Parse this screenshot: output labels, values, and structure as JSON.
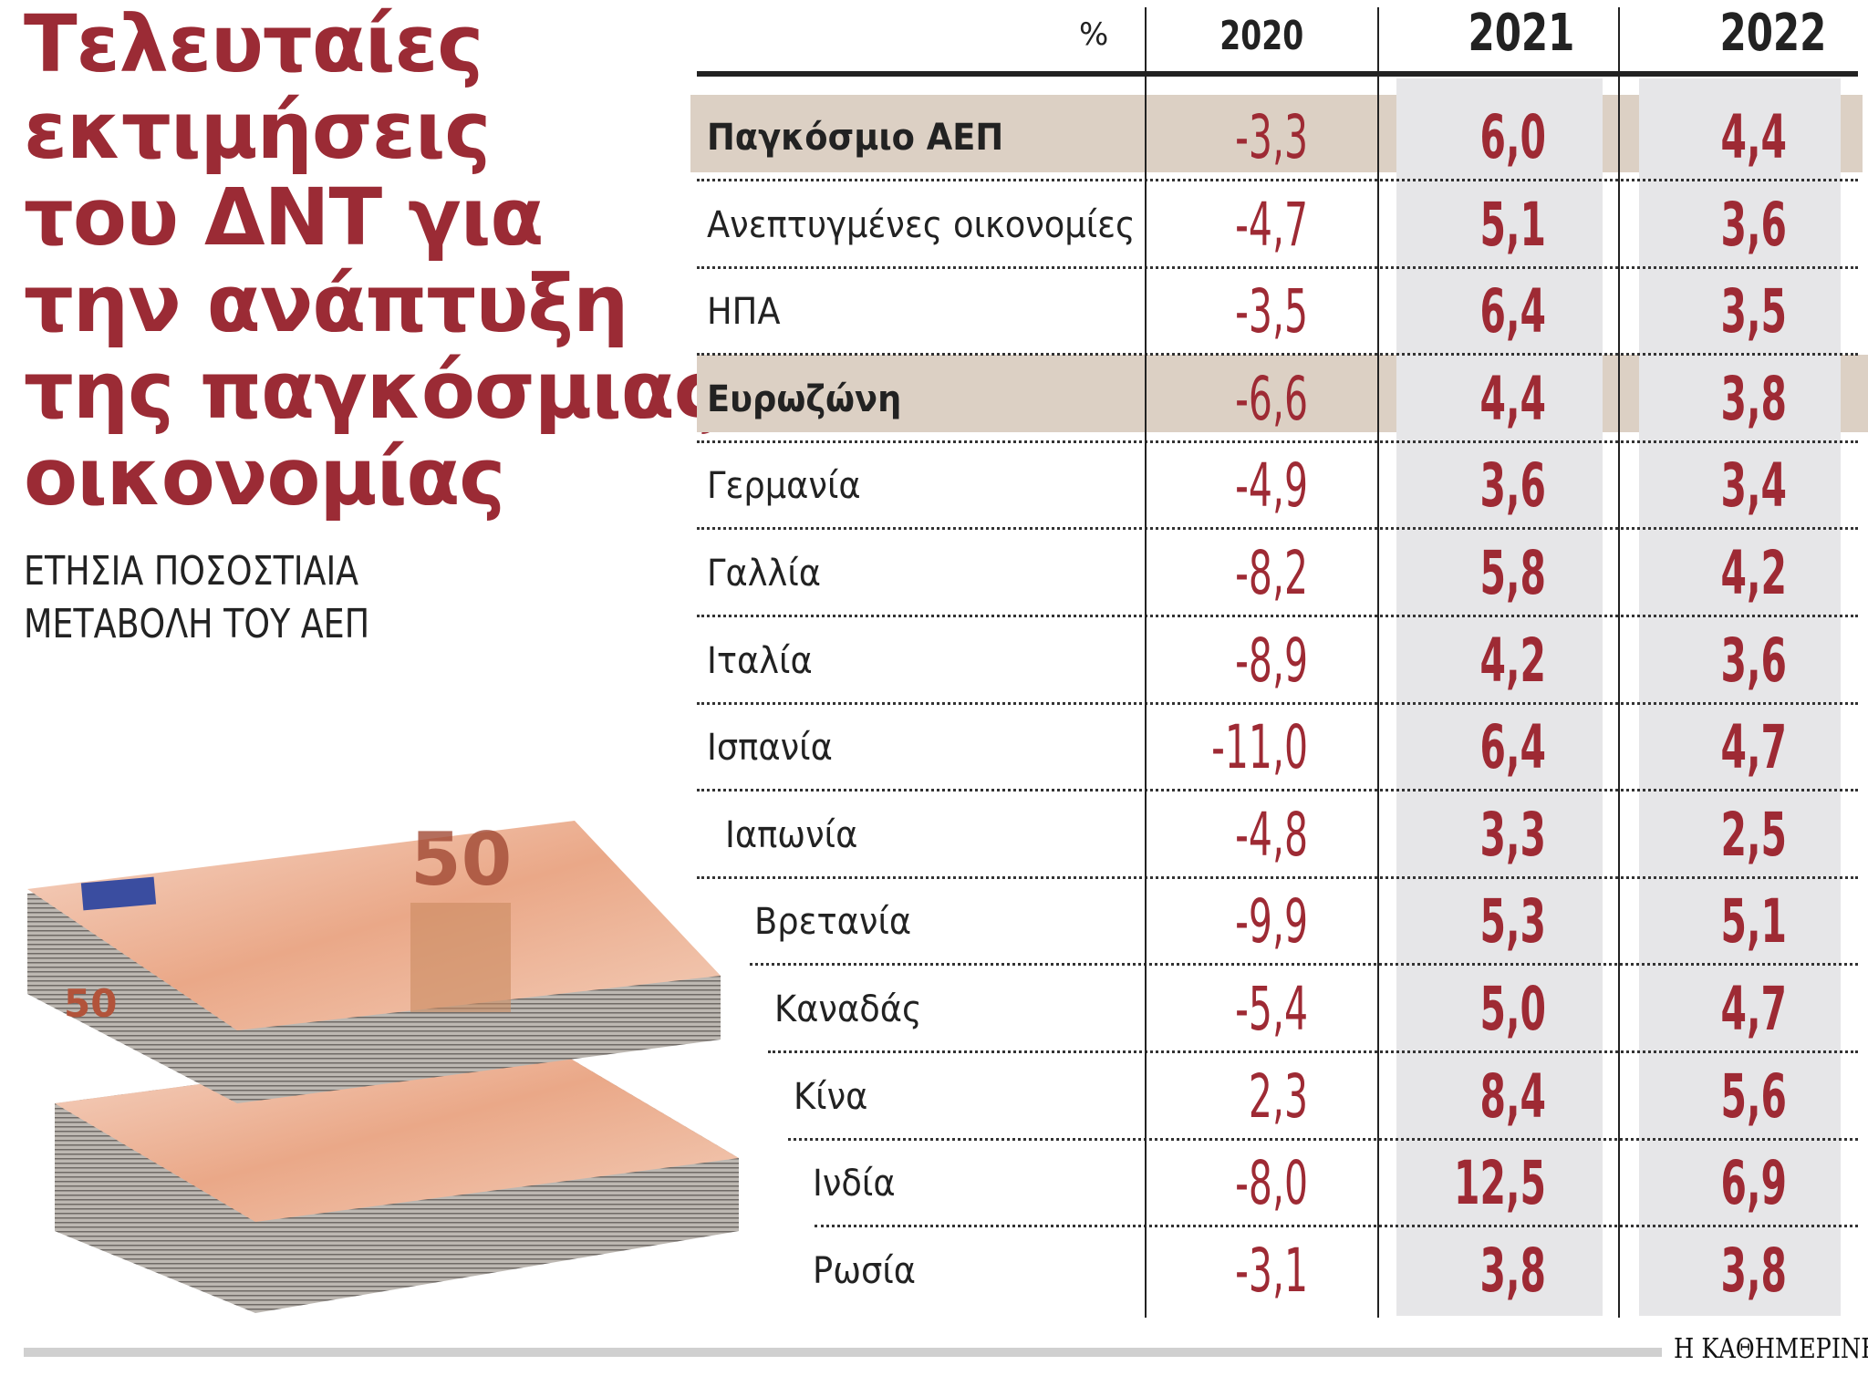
{
  "title_lines": [
    "Τελευταίες",
    "εκτιμήσεις",
    "του ΔΝΤ για",
    "την ανάπτυξη",
    "της παγκόσμιας",
    "οικονομίας"
  ],
  "subtitle_lines": [
    "ΕΤΗΣΙΑ ΠΟΣΟΣΤΙΑΙΑ",
    "ΜΕΤΑΒΟΛΗ ΤΟΥ ΑΕΠ"
  ],
  "source": "Η ΚΑΘΗΜΕΡΙΝΗ",
  "colors": {
    "accent": "#9b2b35",
    "highlight": "#dcd0c4",
    "column_shade": "#e6e6e8"
  },
  "chart_data": {
    "type": "table",
    "title": "Τελευταίες εκτιμήσεις του ΔΝΤ για την ανάπτυξη της παγκόσμιας οικονομίας",
    "subtitle": "ΕΤΗΣΙΑ ΠΟΣΟΣΤΙΑΙΑ ΜΕΤΑΒΟΛΗ ΤΟΥ ΑΕΠ",
    "unit": "%",
    "columns": [
      "2020",
      "2021",
      "2022"
    ],
    "rows": [
      {
        "label": "Παγκόσμιο ΑΕΠ",
        "highlight": true,
        "values": [
          "-3,3",
          "6,0",
          "4,4"
        ]
      },
      {
        "label": "Ανεπτυγμένες οικονομίες",
        "values": [
          "-4,7",
          "5,1",
          "3,6"
        ]
      },
      {
        "label": "ΗΠΑ",
        "values": [
          "-3,5",
          "6,4",
          "3,5"
        ]
      },
      {
        "label": "Ευρωζώνη",
        "highlight": true,
        "values": [
          "-6,6",
          "4,4",
          "3,8"
        ]
      },
      {
        "label": "Γερμανία",
        "values": [
          "-4,9",
          "3,6",
          "3,4"
        ]
      },
      {
        "label": "Γαλλία",
        "values": [
          "-8,2",
          "5,8",
          "4,2"
        ]
      },
      {
        "label": "Ιταλία",
        "values": [
          "-8,9",
          "4,2",
          "3,6"
        ]
      },
      {
        "label": "Ισπανία",
        "values": [
          "-11,0",
          "6,4",
          "4,7"
        ]
      },
      {
        "label": "Ιαπωνία",
        "values": [
          "-4,8",
          "3,3",
          "2,5"
        ]
      },
      {
        "label": "Βρετανία",
        "values": [
          "-9,9",
          "5,3",
          "5,1"
        ]
      },
      {
        "label": "Καναδάς",
        "values": [
          "-5,4",
          "5,0",
          "4,7"
        ]
      },
      {
        "label": "Κίνα",
        "values": [
          "2,3",
          "8,4",
          "5,6"
        ]
      },
      {
        "label": "Ινδία",
        "values": [
          "-8,0",
          "12,5",
          "6,9"
        ]
      },
      {
        "label": "Ρωσία",
        "values": [
          "-3,1",
          "3,8",
          "3,8"
        ]
      }
    ]
  }
}
